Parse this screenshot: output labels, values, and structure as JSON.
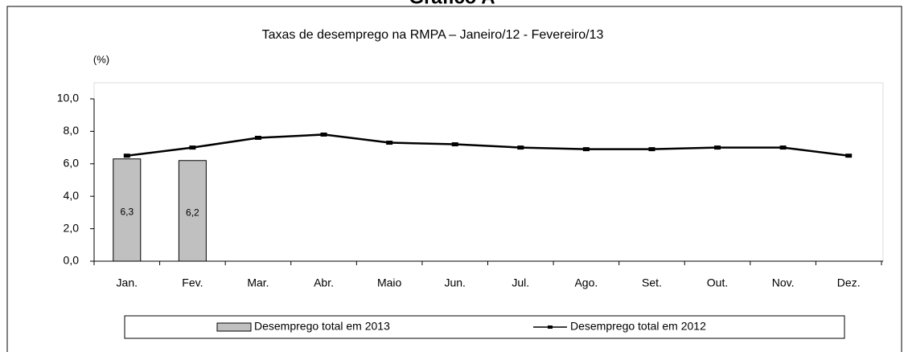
{
  "chart_data": {
    "type": "combo",
    "title": "Gráfico A",
    "subtitle": "Taxas de desemprego na RMPA – Janeiro/12 - Fevereiro/13",
    "y_label": "(%)",
    "categories": [
      "Jan.",
      "Fev.",
      "Mar.",
      "Abr.",
      "Maio",
      "Jun.",
      "Jul.",
      "Ago.",
      "Set.",
      "Out.",
      "Nov.",
      "Dez."
    ],
    "series": [
      {
        "name": "Desemprego total em 2013",
        "kind": "bar",
        "color": "#c0c0c0",
        "values": [
          6.3,
          6.2,
          null,
          null,
          null,
          null,
          null,
          null,
          null,
          null,
          null,
          null
        ],
        "value_labels": [
          "6,3",
          "6,2",
          null,
          null,
          null,
          null,
          null,
          null,
          null,
          null,
          null,
          null
        ]
      },
      {
        "name": "Desemprego total em 2012",
        "kind": "line",
        "color": "#000000",
        "values": [
          6.5,
          7.0,
          7.6,
          7.8,
          7.3,
          7.2,
          7.0,
          6.9,
          6.9,
          7.0,
          7.0,
          6.5
        ]
      }
    ],
    "ylim": [
      0,
      10
    ],
    "yticks": [
      {
        "value": 0,
        "label": "0,0"
      },
      {
        "value": 2,
        "label": "2,0"
      },
      {
        "value": 4,
        "label": "4,0"
      },
      {
        "value": 6,
        "label": "6,0"
      },
      {
        "value": 8,
        "label": "8,0"
      },
      {
        "value": 10,
        "label": "10,0"
      }
    ],
    "legend": "bottom"
  }
}
